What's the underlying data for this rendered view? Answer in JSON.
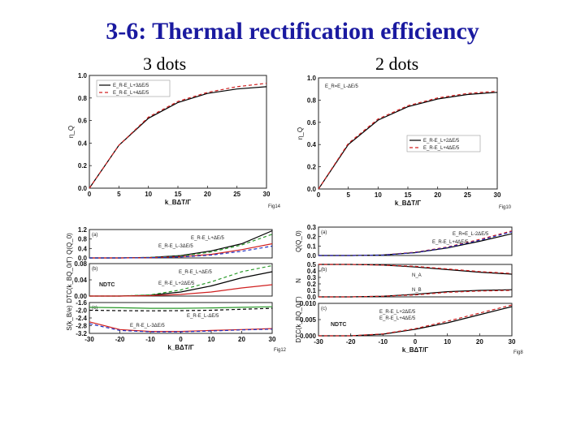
{
  "header": {
    "title": "3-6: Thermal rectification efficiency",
    "left_label": "3 dots",
    "right_label": "2 dots"
  },
  "chart_data": [
    {
      "id": "p1",
      "type": "line",
      "fig": "Fig14",
      "xlabel": "k_BΔT/Γ",
      "ylabel": "η_Q",
      "xlim": [
        0,
        30
      ],
      "ylim": [
        0,
        1.0
      ],
      "xticks": [
        "0",
        "5",
        "10",
        "15",
        "20",
        "25",
        "30"
      ],
      "yticks": [
        "0.0",
        "0.2",
        "0.4",
        "0.6",
        "0.8",
        "1.0"
      ],
      "legend": [
        "E_R-E_L+3ΔE/5",
        "E_R-E_L+4ΔE/5"
      ],
      "x": [
        0,
        5,
        10,
        15,
        20,
        25,
        30
      ],
      "series": [
        {
          "values": [
            0.0,
            0.38,
            0.62,
            0.76,
            0.84,
            0.88,
            0.9
          ],
          "color": "#000000",
          "dash": "none"
        },
        {
          "values": [
            0.0,
            0.38,
            0.63,
            0.77,
            0.85,
            0.9,
            0.93
          ],
          "color": "#d02020",
          "dash": "4,3"
        }
      ]
    },
    {
      "id": "p2",
      "type": "line",
      "fig": "Fig10",
      "xlabel": "k_BΔT/Γ",
      "ylabel": "η_Q",
      "xlim": [
        0,
        30
      ],
      "ylim": [
        0,
        1.0
      ],
      "xticks": [
        "0",
        "5",
        "10",
        "15",
        "20",
        "25",
        "30"
      ],
      "yticks": [
        "0.0",
        "0.2",
        "0.4",
        "0.6",
        "0.8",
        "1.0"
      ],
      "annotation": "E_R=E_L-ΔE/5",
      "legend": [
        "E_R-E_L+2ΔE/5",
        "E_R-E_L+4ΔE/5"
      ],
      "x": [
        0,
        5,
        10,
        15,
        20,
        25,
        30
      ],
      "series": [
        {
          "values": [
            0.0,
            0.4,
            0.62,
            0.74,
            0.81,
            0.85,
            0.87
          ],
          "color": "#000000",
          "dash": "none"
        },
        {
          "values": [
            0.0,
            0.41,
            0.63,
            0.75,
            0.82,
            0.86,
            0.88
          ],
          "color": "#d02020",
          "dash": "4,3"
        }
      ]
    },
    {
      "id": "p3a",
      "type": "line",
      "panel": "(a)",
      "ylabel": "Q(Q_0)",
      "xlim": [
        -30,
        30
      ],
      "ylim": [
        0,
        1.2
      ],
      "yticks": [
        "0.0",
        "0.4",
        "0.8",
        "1.2"
      ],
      "annotations": [
        "E_R-E_L+ΔE/5",
        "E_R-E_L-3ΔE/5"
      ],
      "x": [
        -30,
        -20,
        -10,
        0,
        10,
        20,
        30
      ],
      "series": [
        {
          "values": [
            0.0,
            0.0,
            0.02,
            0.1,
            0.3,
            0.6,
            1.15
          ],
          "color": "#000000",
          "dash": "none"
        },
        {
          "values": [
            0.0,
            0.0,
            0.02,
            0.08,
            0.25,
            0.55,
            1.0
          ],
          "color": "#2a9a2a",
          "dash": "4,3"
        },
        {
          "values": [
            0.0,
            0.0,
            0.01,
            0.05,
            0.15,
            0.35,
            0.6
          ],
          "color": "#d02020",
          "dash": "none"
        },
        {
          "values": [
            0.0,
            0.0,
            0.01,
            0.04,
            0.12,
            0.28,
            0.5
          ],
          "color": "#2030c0",
          "dash": "4,3"
        }
      ]
    },
    {
      "id": "p3b",
      "type": "line",
      "panel": "(b)",
      "ylabel": "DTC(k_BQ_0/Γ)",
      "xlim": [
        -30,
        30
      ],
      "ylim": [
        0,
        0.08
      ],
      "yticks": [
        "0.00",
        "0.04",
        "0.08"
      ],
      "annotations": [
        "E_R-E_L+ΔE/5",
        "E_R-E_L+2ΔE/5",
        "NDTC"
      ],
      "x": [
        -30,
        -20,
        -10,
        0,
        10,
        20,
        30
      ],
      "series": [
        {
          "values": [
            0.0,
            0.0,
            0.002,
            0.01,
            0.025,
            0.045,
            0.06
          ],
          "color": "#000000",
          "dash": "none"
        },
        {
          "values": [
            0.0,
            0.0,
            0.003,
            0.015,
            0.035,
            0.06,
            0.075
          ],
          "color": "#2a9a2a",
          "dash": "4,3"
        },
        {
          "values": [
            0.0,
            0.0,
            0.001,
            0.004,
            0.01,
            0.02,
            0.028
          ],
          "color": "#d02020",
          "dash": "none"
        }
      ]
    },
    {
      "id": "p3c",
      "type": "line",
      "panel": "(c)",
      "ylabel": "S(k_B/e)",
      "xlabel": "k_BΔT/Γ",
      "fig": "Fig12",
      "xlim": [
        -30,
        30
      ],
      "ylim": [
        -3.2,
        -1.6
      ],
      "xticks": [
        "-30",
        "-20",
        "-10",
        "0",
        "10",
        "20",
        "30"
      ],
      "yticks": [
        "-1.6",
        "-2.0",
        "-2.4",
        "-2.8",
        "-3.2"
      ],
      "annotations": [
        "E_R-E_L-ΔE/5",
        "E_R-E_L-3ΔE/5"
      ],
      "x": [
        -30,
        -20,
        -10,
        0,
        10,
        20,
        30
      ],
      "series": [
        {
          "values": [
            -1.85,
            -1.87,
            -1.9,
            -1.9,
            -1.88,
            -1.85,
            -1.82
          ],
          "color": "#2a9a2a",
          "dash": "none"
        },
        {
          "values": [
            -2.0,
            -2.02,
            -2.03,
            -2.02,
            -2.0,
            -1.95,
            -1.9
          ],
          "color": "#000000",
          "dash": "4,3"
        },
        {
          "values": [
            -2.6,
            -3.0,
            -3.1,
            -3.1,
            -3.05,
            -3.0,
            -2.95
          ],
          "color": "#d02020",
          "dash": "none"
        },
        {
          "values": [
            -2.7,
            -3.05,
            -3.12,
            -3.12,
            -3.08,
            -3.02,
            -2.98
          ],
          "color": "#2030c0",
          "dash": "4,3"
        }
      ]
    },
    {
      "id": "p4a",
      "type": "line",
      "panel": "(a)",
      "ylabel": "Q(Q_0)",
      "xlim": [
        -30,
        30
      ],
      "ylim": [
        0,
        0.3
      ],
      "yticks": [
        "0.0",
        "0.1",
        "0.2",
        "0.3"
      ],
      "annotations": [
        "E_R=E_L-2ΔE/5",
        "E_R-E_L+4ΔE/5"
      ],
      "x": [
        -30,
        -20,
        -10,
        0,
        10,
        20,
        30
      ],
      "series": [
        {
          "values": [
            0.0,
            0.0,
            0.005,
            0.03,
            0.08,
            0.15,
            0.23
          ],
          "color": "#000000",
          "dash": "none"
        },
        {
          "values": [
            0.0,
            0.0,
            0.005,
            0.035,
            0.09,
            0.17,
            0.26
          ],
          "color": "#d02020",
          "dash": "4,3"
        },
        {
          "values": [
            0.0,
            0.0,
            0.004,
            0.03,
            0.085,
            0.16,
            0.25
          ],
          "color": "#2030c0",
          "dash": "4,3"
        }
      ]
    },
    {
      "id": "p4b",
      "type": "line",
      "panel": "(b)",
      "ylabel": "N",
      "xlim": [
        -30,
        30
      ],
      "ylim": [
        0,
        0.5
      ],
      "yticks": [
        "0.0",
        "0.1",
        "0.2",
        "0.3",
        "0.4",
        "0.5"
      ],
      "annotations": [
        "N_A",
        "N_B"
      ],
      "x": [
        -30,
        -20,
        -10,
        0,
        10,
        20,
        30
      ],
      "series": [
        {
          "values": [
            0.5,
            0.5,
            0.49,
            0.46,
            0.42,
            0.38,
            0.35
          ],
          "color": "#000000",
          "dash": "none"
        },
        {
          "values": [
            0.5,
            0.5,
            0.49,
            0.47,
            0.43,
            0.39,
            0.36
          ],
          "color": "#d02020",
          "dash": "4,3"
        },
        {
          "values": [
            0.0,
            0.0,
            0.01,
            0.04,
            0.08,
            0.1,
            0.11
          ],
          "color": "#000000",
          "dash": "none"
        },
        {
          "values": [
            0.0,
            0.0,
            0.01,
            0.03,
            0.07,
            0.09,
            0.1
          ],
          "color": "#d02020",
          "dash": "4,3"
        }
      ]
    },
    {
      "id": "p4c",
      "type": "line",
      "panel": "(c)",
      "ylabel": "DTC(k_BQ_0/Γ)",
      "xlabel": "k_BΔT/Γ",
      "fig": "Fig8",
      "xlim": [
        -30,
        30
      ],
      "ylim": [
        0,
        0.01
      ],
      "xticks": [
        "-30",
        "-20",
        "-10",
        "0",
        "10",
        "20",
        "30"
      ],
      "yticks": [
        "0.000",
        "0.005",
        "0.010"
      ],
      "annotations": [
        "E_R-E_L+2ΔE/5",
        "E_R-E_L+4ΔE/5",
        "NDTC"
      ],
      "x": [
        -30,
        -20,
        -10,
        0,
        10,
        20,
        30
      ],
      "series": [
        {
          "values": [
            0.0,
            0.0,
            0.0005,
            0.002,
            0.004,
            0.0065,
            0.009
          ],
          "color": "#000000",
          "dash": "none"
        },
        {
          "values": [
            0.0,
            0.0,
            0.0006,
            0.0022,
            0.0045,
            0.007,
            0.0095
          ],
          "color": "#d02020",
          "dash": "4,3"
        }
      ]
    }
  ]
}
